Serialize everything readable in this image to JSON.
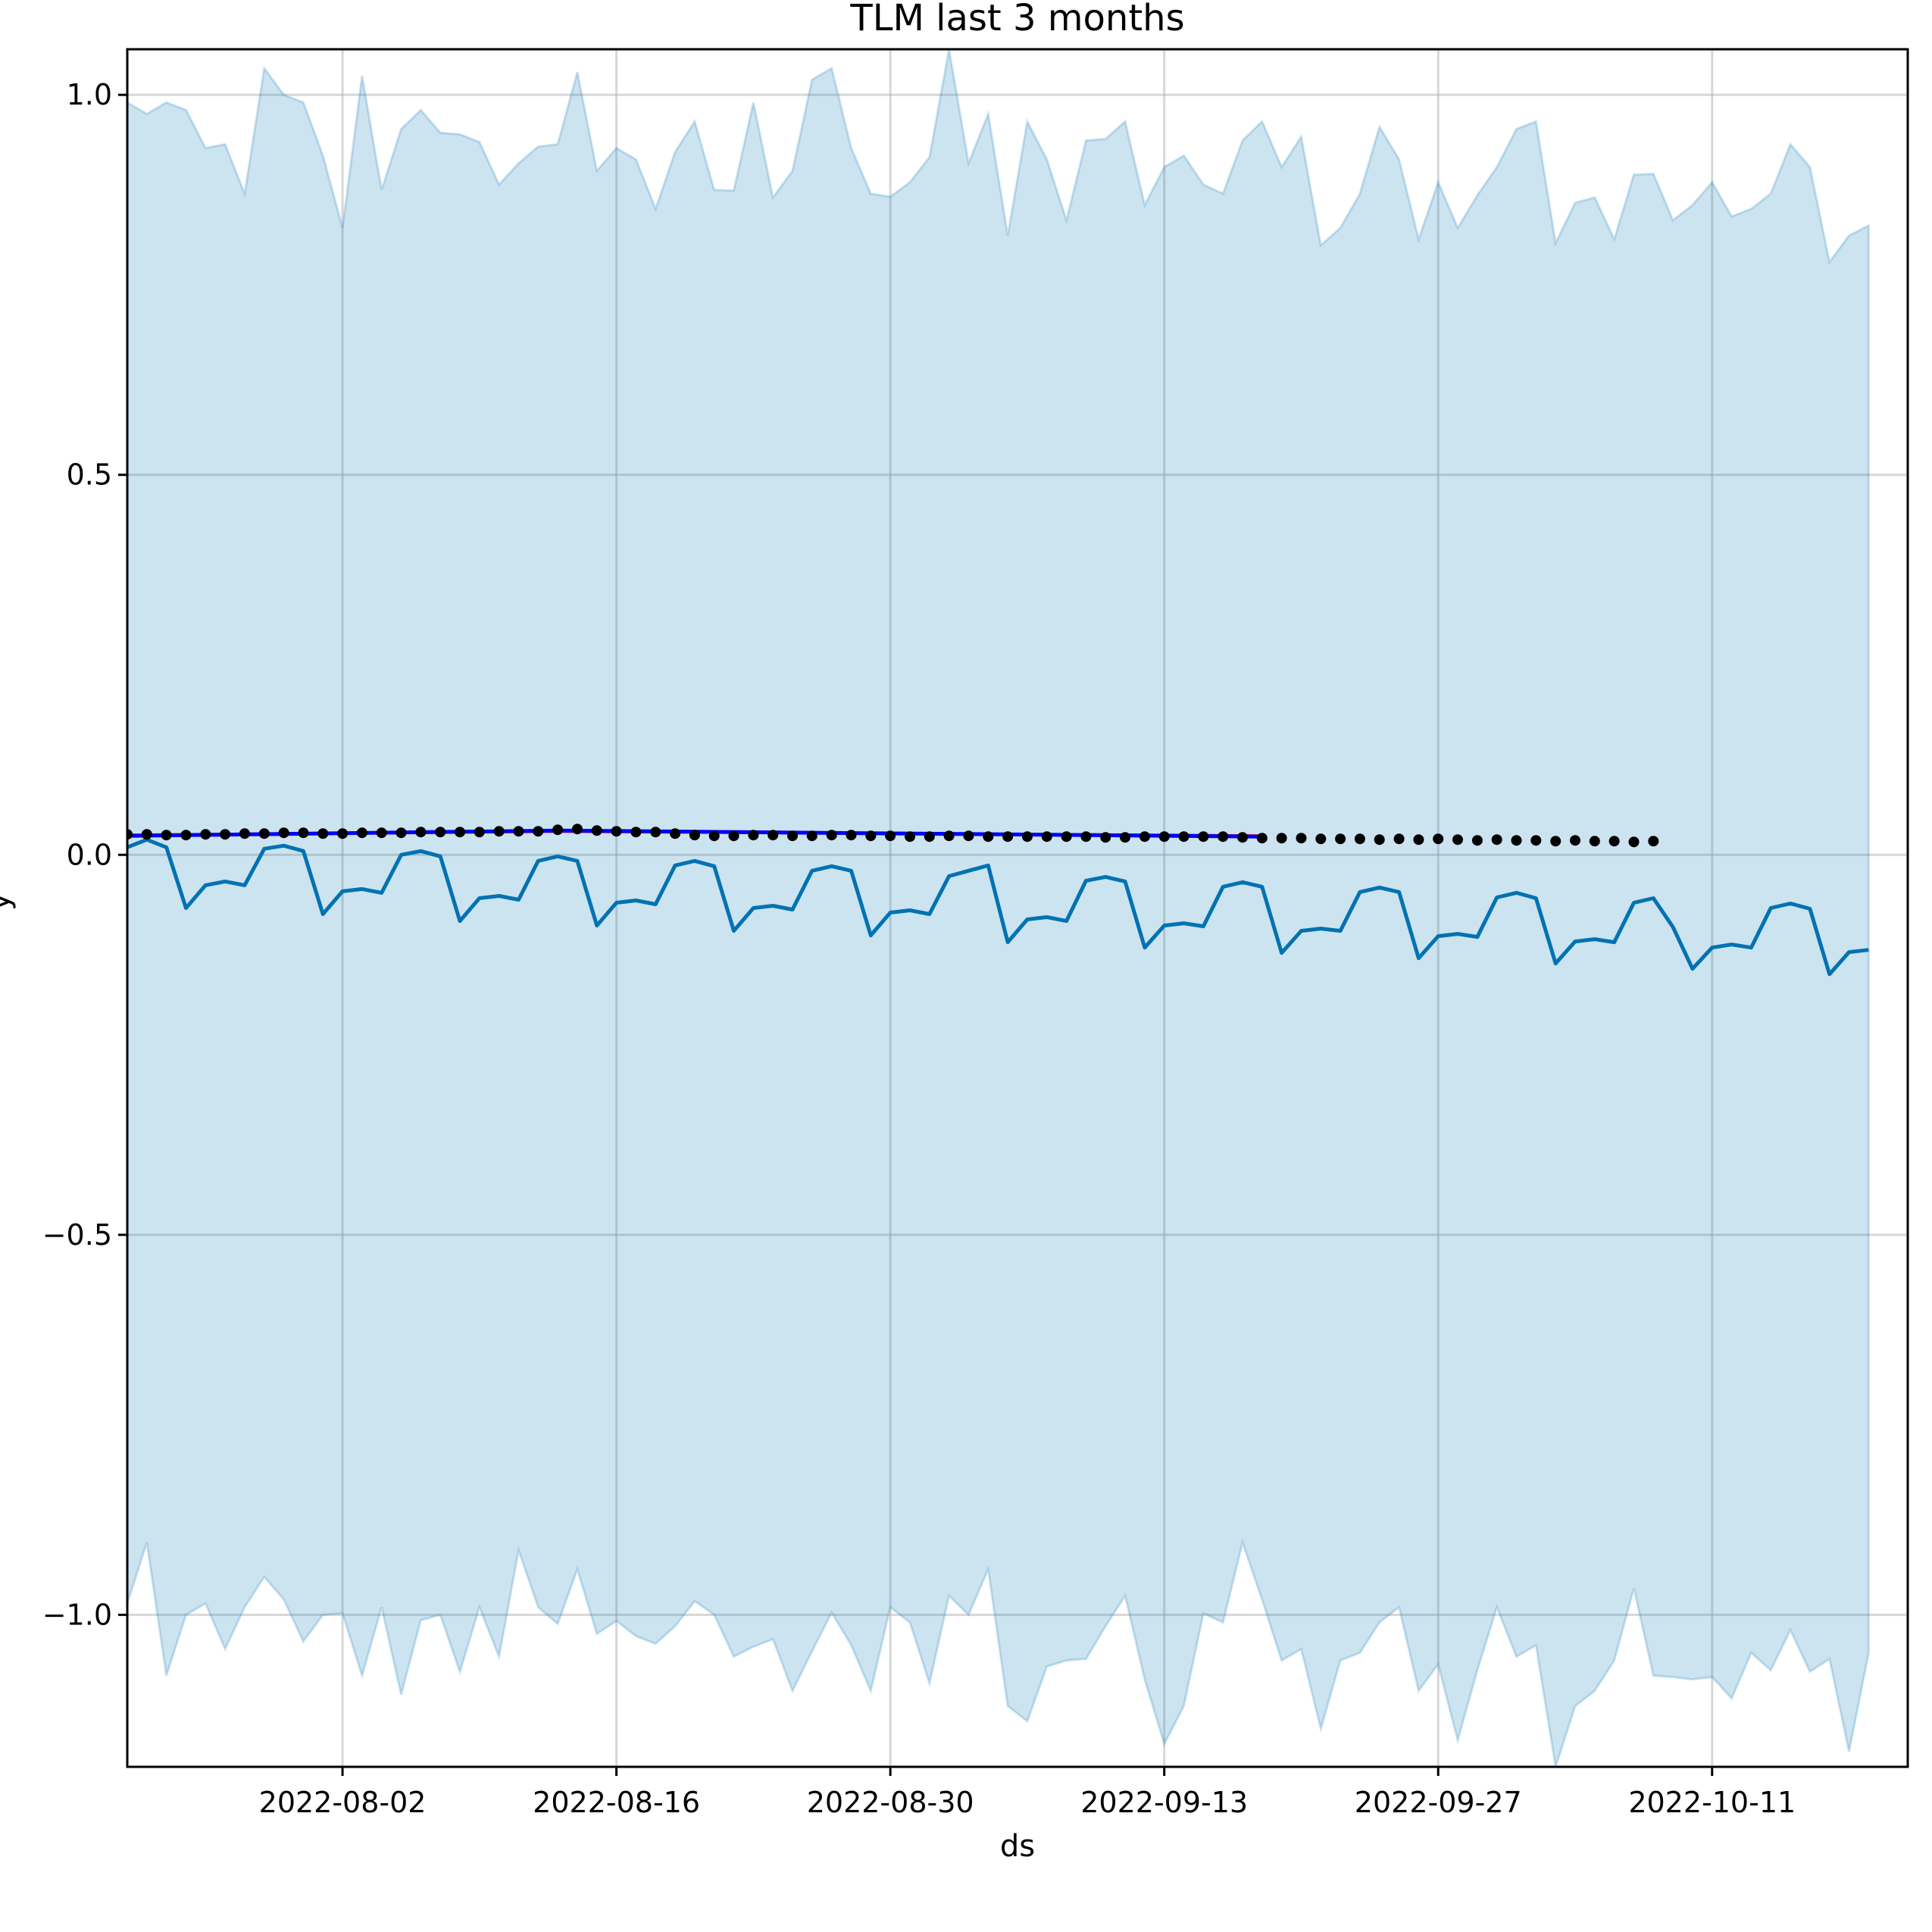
{
  "chart_data": {
    "type": "line",
    "title": "TLM last 3 months",
    "xlabel": "ds",
    "ylabel": "y",
    "x_start": "2022-07-23",
    "x_end": "2022-10-21",
    "xlim": [
      "2022-07-22",
      "2022-10-21"
    ],
    "ylim": [
      -1.2,
      1.06
    ],
    "x_ticks": [
      "2022-08-02",
      "2022-08-16",
      "2022-08-30",
      "2022-09-13",
      "2022-09-27",
      "2022-10-11"
    ],
    "y_ticks": [
      1.0,
      0.5,
      0.0,
      -0.5,
      -1.0
    ],
    "y_tick_labels": [
      "1.0",
      "0.5",
      "0.0",
      "−0.5",
      "−1.0"
    ],
    "grid": true,
    "colors": {
      "forecast": "#0072B2",
      "band": "#0072B2",
      "observed": "#000000",
      "trend": "#ff0000",
      "fitted": "#0000ff"
    },
    "forecast": {
      "start": "2022-07-22",
      "yhat": [
        0.01,
        0.02,
        0.01,
        -0.07,
        -0.04,
        -0.035,
        -0.04,
        0.008,
        0.012,
        0.005,
        -0.078,
        -0.048,
        -0.045,
        -0.05,
        0.0,
        0.005,
        -0.002,
        -0.087,
        -0.057,
        -0.054,
        -0.059,
        -0.008,
        -0.002,
        -0.008,
        -0.093,
        -0.063,
        -0.06,
        -0.065,
        -0.014,
        -0.008,
        -0.015,
        -0.1,
        -0.07,
        -0.067,
        -0.072,
        -0.021,
        -0.015,
        -0.021,
        -0.106,
        -0.076,
        -0.073,
        -0.078,
        -0.028,
        -0.021,
        -0.014,
        -0.115,
        -0.085,
        -0.082,
        -0.087,
        -0.034,
        -0.029,
        -0.035,
        -0.122,
        -0.093,
        -0.09,
        -0.094,
        -0.042,
        -0.036,
        -0.042,
        -0.129,
        -0.1,
        -0.097,
        -0.1,
        -0.049,
        -0.043,
        -0.049,
        -0.136,
        -0.107,
        -0.104,
        -0.108,
        -0.056,
        -0.05,
        -0.057,
        -0.143,
        -0.114,
        -0.111,
        -0.115,
        -0.063,
        -0.057,
        -0.095,
        -0.15,
        -0.122,
        -0.118,
        -0.122,
        -0.07,
        -0.064,
        -0.071,
        -0.157,
        -0.128,
        -0.125
      ],
      "yhat_upper": [
        0.99,
        0.975,
        0.99,
        0.98,
        0.93,
        0.935,
        0.87,
        1.035,
        1.0,
        0.99,
        0.92,
        0.825,
        1.025,
        0.875,
        0.955,
        0.98,
        0.95,
        0.948,
        0.938,
        0.882,
        0.91,
        0.932,
        0.935,
        1.03,
        0.9,
        0.93,
        0.915,
        0.85,
        0.925,
        0.965,
        0.875,
        0.874,
        0.99,
        0.865,
        0.9,
        1.02,
        1.035,
        0.93,
        0.87,
        0.866,
        0.885,
        0.918,
        1.06,
        0.91,
        0.975,
        0.815,
        0.965,
        0.915,
        0.835,
        0.94,
        0.942,
        0.965,
        0.855,
        0.905,
        0.92,
        0.882,
        0.87,
        0.94,
        0.965,
        0.905,
        0.945,
        0.802,
        0.825,
        0.87,
        0.958,
        0.915,
        0.81,
        0.885,
        0.825,
        0.868,
        0.905,
        0.955,
        0.965,
        0.805,
        0.858,
        0.865,
        0.81,
        0.895,
        0.896,
        0.835,
        0.855,
        0.885,
        0.84,
        0.85,
        0.87,
        0.935,
        0.905,
        0.78,
        0.815,
        0.828
      ],
      "yhat_lower": [
        -0.985,
        -0.905,
        -1.08,
        -1.0,
        -0.985,
        -1.045,
        -0.99,
        -0.95,
        -0.98,
        -1.035,
        -1.0,
        -0.998,
        -1.08,
        -0.99,
        -1.105,
        -1.007,
        -1.0,
        -1.075,
        -0.99,
        -1.055,
        -0.915,
        -0.99,
        -1.012,
        -0.94,
        -1.025,
        -1.008,
        -1.028,
        -1.038,
        -1.015,
        -0.982,
        -1.0,
        -1.055,
        -1.042,
        -1.032,
        -1.1,
        -1.048,
        -0.997,
        -1.04,
        -1.1,
        -0.99,
        -1.01,
        -1.09,
        -0.975,
        -1.0,
        -0.94,
        -1.12,
        -1.14,
        -1.068,
        -1.06,
        -1.058,
        -1.015,
        -0.975,
        -1.085,
        -1.17,
        -1.12,
        -0.998,
        -1.01,
        -0.905,
        -0.98,
        -1.06,
        -1.045,
        -1.15,
        -1.06,
        -1.05,
        -1.01,
        -0.99,
        -1.1,
        -1.065,
        -1.165,
        -1.073,
        -0.99,
        -1.055,
        -1.04,
        -1.2,
        -1.12,
        -1.1,
        -1.06,
        -0.965,
        -1.08,
        -1.082,
        -1.085,
        -1.082,
        -1.11,
        -1.05,
        -1.073,
        -1.02,
        -1.075,
        -1.058,
        -1.18,
        -1.05
      ]
    },
    "observed": {
      "start": "2022-07-22",
      "y": [
        0.027,
        0.027,
        0.026,
        0.026,
        0.027,
        0.027,
        0.028,
        0.028,
        0.029,
        0.029,
        0.028,
        0.028,
        0.029,
        0.029,
        0.029,
        0.03,
        0.03,
        0.03,
        0.03,
        0.031,
        0.031,
        0.031,
        0.033,
        0.034,
        0.032,
        0.031,
        0.03,
        0.03,
        0.028,
        0.026,
        0.025,
        0.025,
        0.026,
        0.026,
        0.025,
        0.025,
        0.026,
        0.026,
        0.025,
        0.025,
        0.024,
        0.024,
        0.025,
        0.025,
        0.024,
        0.024,
        0.024,
        0.024,
        0.024,
        0.024,
        0.023,
        0.023,
        0.024,
        0.024,
        0.024,
        0.024,
        0.024,
        0.023,
        0.022,
        0.022,
        0.022,
        0.021,
        0.021,
        0.021,
        0.02,
        0.021,
        0.02,
        0.021,
        0.02,
        0.019,
        0.02,
        0.019,
        0.019,
        0.018,
        0.019,
        0.018,
        0.018,
        0.017,
        0.018
      ]
    },
    "fitted": {
      "start": "2022-07-22",
      "end": "2022-09-18",
      "y_start": 0.025,
      "y_peak": 0.032,
      "peak_date": "2022-08-13",
      "y_end": 0.024
    },
    "trend": {
      "start": "2022-07-22",
      "end": "2022-09-18",
      "y_start": 0.026,
      "y_peak": 0.031,
      "peak_date": "2022-08-13",
      "y_end": 0.025
    }
  }
}
